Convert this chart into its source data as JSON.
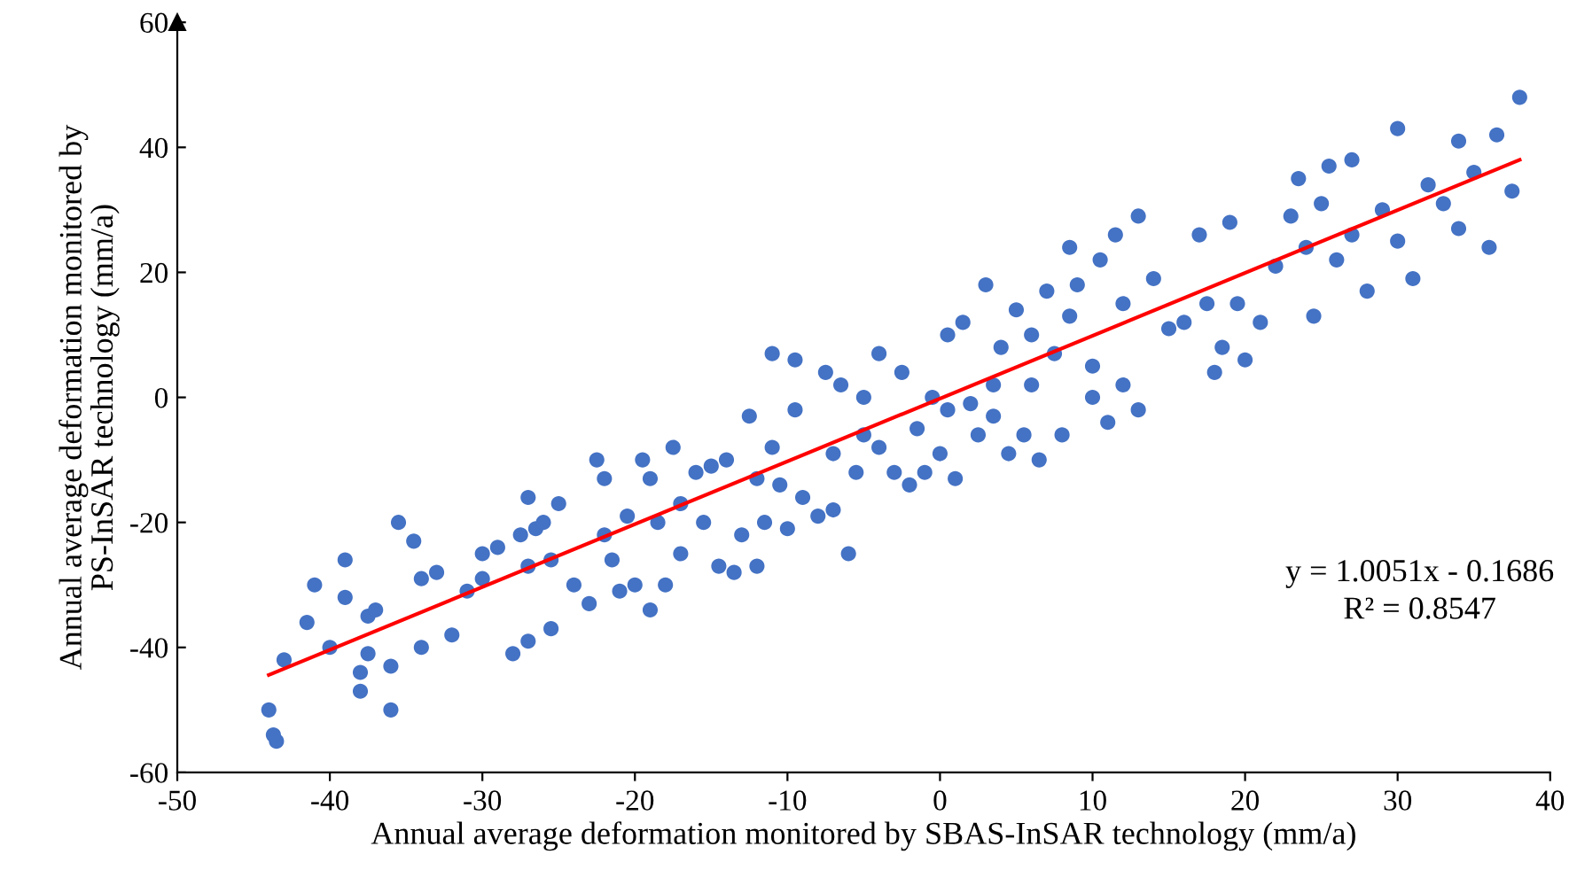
{
  "chart_data": {
    "type": "scatter",
    "xlabel": "Annual average deformation monitored by SBAS-InSAR technology (mm/a)",
    "ylabel": "Annual average deformation monitored by\nPS-InSAR technology (mm/a)",
    "xlim": [
      -50,
      40
    ],
    "xticks": [
      -50,
      -40,
      -30,
      -20,
      -10,
      0,
      10,
      20,
      30,
      40
    ],
    "ylim": [
      -60,
      60
    ],
    "yticks": [
      -60,
      -40,
      -20,
      0,
      20,
      40,
      60
    ],
    "grid": false,
    "legend": false,
    "marker": "circle",
    "annotations": [
      "y = 1.0051x - 0.1686",
      "R² = 0.8547"
    ],
    "series": [
      {
        "color": "#4472c4",
        "x": [
          -44,
          -43.5,
          -43.7,
          -43,
          -41.5,
          -41,
          -40,
          -39,
          -39,
          -38,
          -38,
          -37.5,
          -37.5,
          -37,
          -36,
          -36,
          -35.5,
          -34.5,
          -34,
          -34,
          -33,
          -32,
          -31,
          -30,
          -30,
          -29,
          -28,
          -27.5,
          -27,
          -27,
          -27,
          -26.5,
          -26,
          -25.5,
          -25.5,
          -25,
          -24,
          -23,
          -22.5,
          -22,
          -22,
          -21.5,
          -21,
          -20.5,
          -20,
          -19.5,
          -19,
          -19,
          -18.5,
          -18,
          -17.5,
          -17,
          -17,
          -16,
          -15.5,
          -15,
          -14.5,
          -14,
          -13.5,
          -13,
          -12.5,
          -12,
          -12,
          -11.5,
          -11,
          -11,
          -10.5,
          -10,
          -9.5,
          -9.5,
          -9,
          -8,
          -7.5,
          -7,
          -7,
          -6.5,
          -6,
          -5.5,
          -5,
          -5,
          -4,
          -4,
          -3,
          -2.5,
          -2,
          -1.5,
          -1,
          -0.5,
          0,
          0.5,
          0.5,
          1,
          1.5,
          2,
          2.5,
          3,
          3.5,
          3.5,
          4,
          4.5,
          5,
          5.5,
          6,
          6,
          6.5,
          7,
          7.5,
          8,
          8.5,
          8.5,
          9,
          10,
          10,
          10.5,
          11,
          11.5,
          12,
          12,
          13,
          13,
          14,
          15,
          16,
          17,
          17.5,
          18,
          18.5,
          19,
          19.5,
          20,
          21,
          22,
          23,
          23.5,
          24,
          24.5,
          25,
          25.5,
          26,
          27,
          27,
          28,
          29,
          30,
          30,
          31,
          32,
          33,
          34,
          34,
          35,
          36,
          36.5,
          37.5,
          38
        ],
        "values": [
          -50,
          -55,
          -54,
          -42,
          -36,
          -30,
          -40,
          -32,
          -26,
          -44,
          -47,
          -41,
          -35,
          -34,
          -50,
          -43,
          -20,
          -23,
          -29,
          -40,
          -28,
          -38,
          -31,
          -29,
          -25,
          -24,
          -41,
          -22,
          -16,
          -27,
          -39,
          -21,
          -20,
          -37,
          -26,
          -17,
          -30,
          -33,
          -10,
          -22,
          -13,
          -26,
          -31,
          -19,
          -30,
          -10,
          -34,
          -13,
          -20,
          -30,
          -8,
          -17,
          -25,
          -12,
          -20,
          -11,
          -27,
          -10,
          -28,
          -22,
          -3,
          -13,
          -27,
          -20,
          7,
          -8,
          -14,
          -21,
          -2,
          6,
          -16,
          -19,
          4,
          -9,
          -18,
          2,
          -25,
          -12,
          0,
          -6,
          7,
          -8,
          -12,
          4,
          -14,
          -5,
          -12,
          0,
          -9,
          10,
          -2,
          -13,
          12,
          -1,
          -6,
          18,
          2,
          -3,
          8,
          -9,
          14,
          -6,
          10,
          2,
          -10,
          17,
          7,
          -6,
          24,
          13,
          18,
          0,
          5,
          22,
          -4,
          26,
          15,
          2,
          29,
          -2,
          19,
          11,
          12,
          26,
          15,
          4,
          8,
          28,
          15,
          6,
          12,
          21,
          29,
          35,
          24,
          13,
          31,
          37,
          22,
          38,
          26,
          17,
          30,
          43,
          25,
          19,
          34,
          31,
          41,
          27,
          36,
          24,
          42,
          33,
          48
        ]
      },
      {
        "type": "line",
        "color": "#ff0000",
        "x": [
          -44,
          38
        ],
        "values": [
          -44.4,
          38.0
        ],
        "marker": "none"
      }
    ]
  }
}
